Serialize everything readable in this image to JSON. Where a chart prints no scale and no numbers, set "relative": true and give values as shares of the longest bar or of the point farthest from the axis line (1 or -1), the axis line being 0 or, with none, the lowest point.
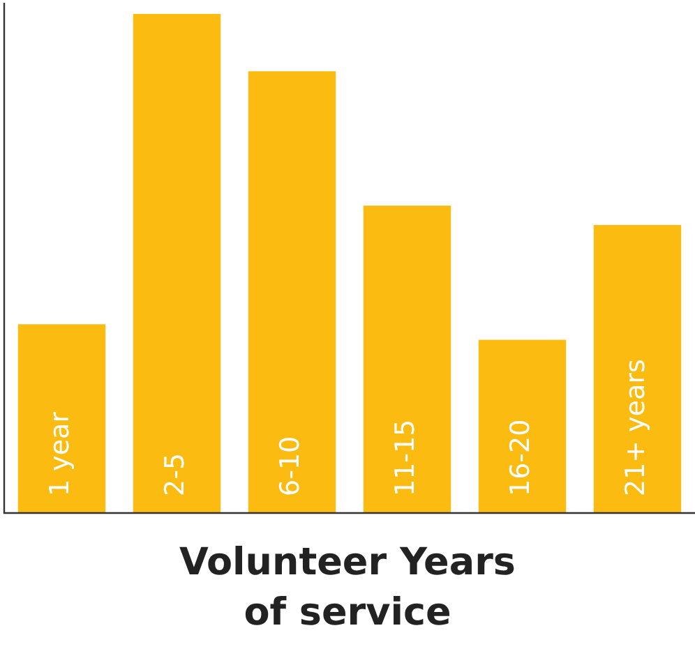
{
  "chart_data": {
    "type": "bar",
    "title": "Volunteer Years of service",
    "relative": true,
    "categories": [
      "1 year",
      "2-5",
      "6-10",
      "11-15",
      "16-20",
      "21+ years"
    ],
    "values": [
      0.378,
      1,
      0.885,
      0.616,
      0.347,
      0.577
    ],
    "color": "#fbbb10",
    "legend": false
  }
}
